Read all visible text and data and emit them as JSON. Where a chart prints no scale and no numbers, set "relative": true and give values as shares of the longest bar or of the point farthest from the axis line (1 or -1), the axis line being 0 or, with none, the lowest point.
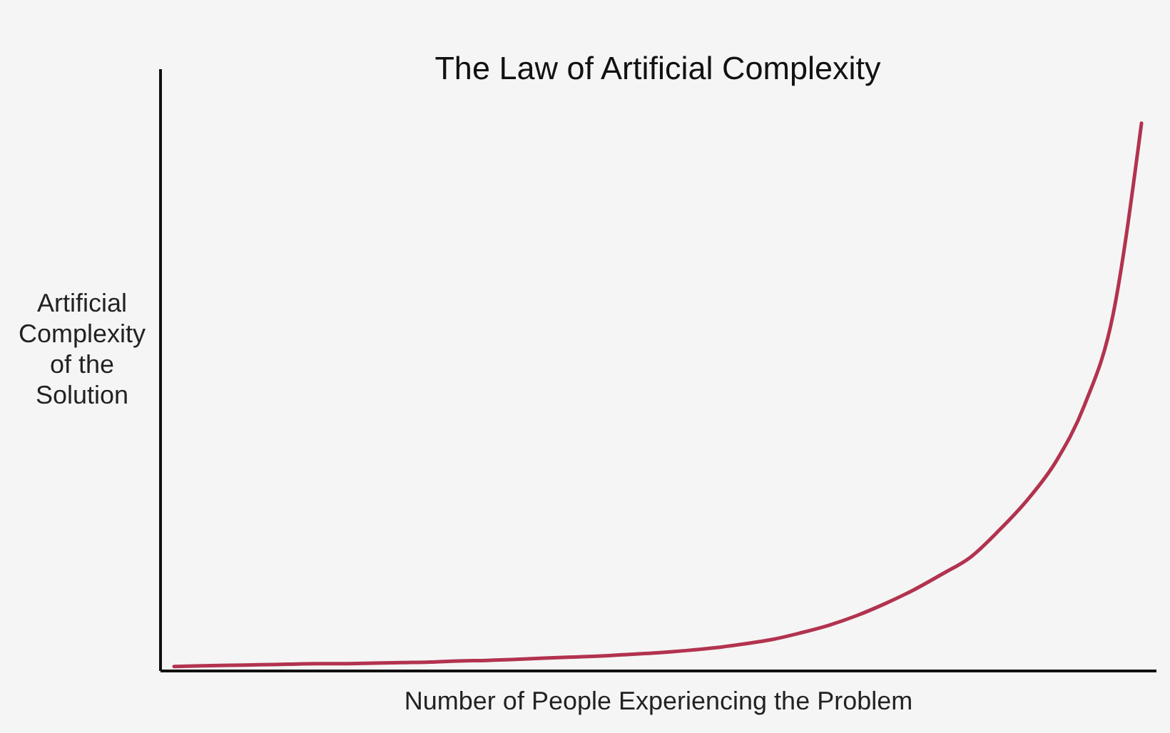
{
  "chart_data": {
    "type": "line",
    "title": "The Law of Artificial Complexity",
    "xlabel": "Number of People Experiencing the Problem",
    "ylabel": "Artificial\nComplexity\nof the\nSolution",
    "relative": true,
    "categories": [
      null,
      null,
      null,
      null,
      null,
      null,
      null,
      null,
      null,
      null,
      null,
      null,
      null,
      null,
      null,
      null,
      null,
      null,
      null,
      null,
      null,
      null,
      null,
      null,
      null,
      null,
      null,
      null,
      null,
      null,
      null,
      null,
      null,
      null,
      null
    ],
    "series": [
      {
        "color": "#b2334f",
        "values": [
          0.007,
          0.008,
          0.009,
          0.01,
          0.011,
          0.012,
          0.012,
          0.013,
          0.014,
          0.015,
          0.017,
          0.018,
          0.02,
          0.022,
          0.024,
          0.026,
          0.029,
          0.032,
          0.036,
          0.041,
          0.048,
          0.056,
          0.068,
          0.082,
          0.1,
          0.122,
          0.147,
          0.176,
          0.207,
          0.256,
          0.312,
          0.382,
          0.485,
          0.65,
          1
        ]
      }
    ]
  }
}
